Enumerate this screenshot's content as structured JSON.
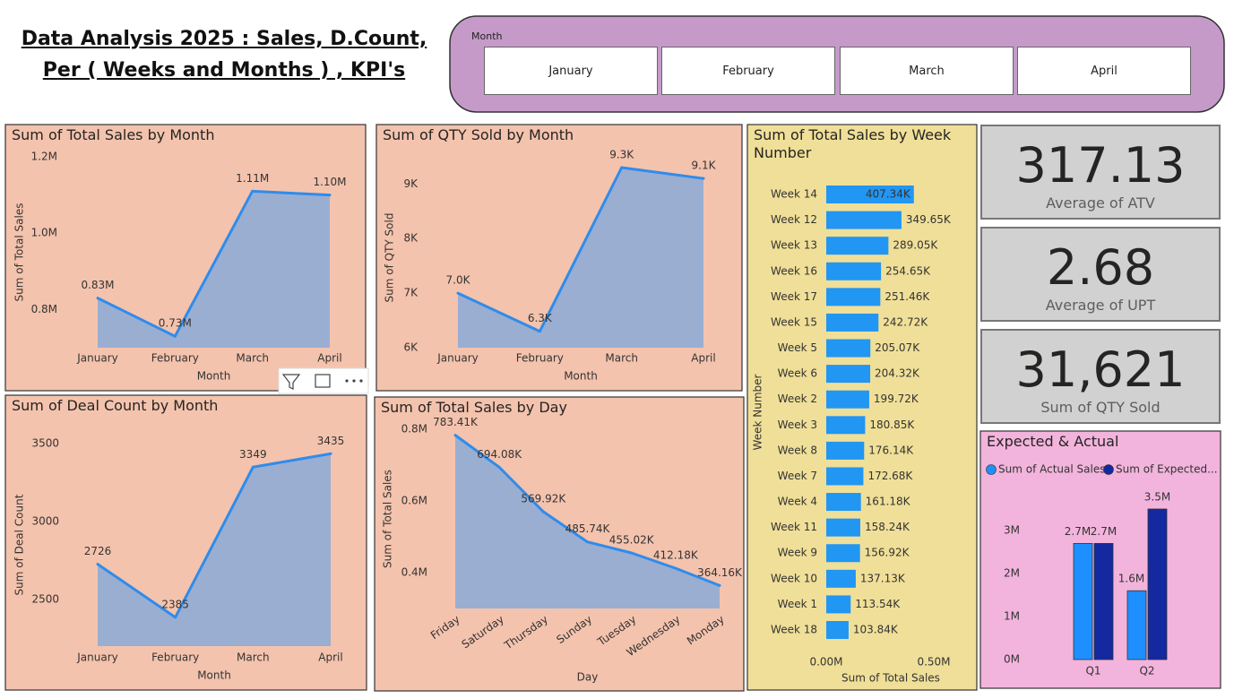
{
  "title": [
    "Data Analysis 2025 : Sales, D.Count,",
    "Per ( Weeks and Months ) , KPI's"
  ],
  "slicer": {
    "title": "Month",
    "items": [
      "January",
      "February",
      "March",
      "April"
    ]
  },
  "cards": [
    {
      "value": "317.13",
      "label": "Average of ATV"
    },
    {
      "value": "2.68",
      "label": "Average of UPT"
    },
    {
      "value": "31,621",
      "label": "Sum of QTY Sold"
    }
  ],
  "chart_data": [
    {
      "type": "area",
      "title": "Sum of Total Sales by Month",
      "x_label": "Month",
      "y_label": "Sum of Total Sales",
      "categories": [
        "January",
        "February",
        "March",
        "April"
      ],
      "values": [
        830000,
        730000,
        1110000,
        1100000
      ],
      "value_labels": [
        "0.83M",
        "0.73M",
        "1.11M",
        "1.10M"
      ],
      "color": "#2f8ceb",
      "ylim": [
        700000,
        1200000
      ],
      "yticks": [
        {
          "value": 800000,
          "label": "0.8M"
        },
        {
          "value": 1000000,
          "label": "1.0M"
        },
        {
          "value": 1200000,
          "label": "1.2M"
        }
      ],
      "grid": false
    },
    {
      "type": "area",
      "title": "Sum of QTY Sold by Month",
      "x_label": "Month",
      "y_label": "Sum of QTY Sold",
      "categories": [
        "January",
        "February",
        "March",
        "April"
      ],
      "values": [
        7000,
        6300,
        9300,
        9100
      ],
      "value_labels": [
        "7.0K",
        "6.3K",
        "9.3K",
        "9.1K"
      ],
      "color": "#2f8ceb",
      "ylim": [
        6000,
        9300
      ],
      "yticks": [
        {
          "value": 6000,
          "label": "6K"
        },
        {
          "value": 7000,
          "label": "7K"
        },
        {
          "value": 8000,
          "label": "8K"
        },
        {
          "value": 9000,
          "label": "9K"
        }
      ],
      "grid": false
    },
    {
      "type": "area",
      "title": "Sum of Deal Count by Month",
      "x_label": "Month",
      "y_label": "Sum of Deal Count",
      "categories": [
        "January",
        "February",
        "March",
        "April"
      ],
      "values": [
        2726,
        2385,
        3349,
        3435
      ],
      "color": "#2f8ceb",
      "ylim": [
        2200,
        3500
      ],
      "yticks": [
        2500,
        3000,
        3500
      ],
      "grid": false
    },
    {
      "type": "area",
      "title": "Sum of Total Sales by Day",
      "x_label": "Day",
      "y_label": "Sum of Total Sales",
      "categories": [
        "Friday",
        "Saturday",
        "Thursday",
        "Sunday",
        "Tuesday",
        "Wednesday",
        "Monday"
      ],
      "values": [
        783410,
        694080,
        569920,
        485740,
        455020,
        412180,
        364160
      ],
      "value_labels": [
        "783.41K",
        "694.08K",
        "569.92K",
        "485.74K",
        "455.02K",
        "412.18K",
        "364.16K"
      ],
      "color": "#2f8ceb",
      "ylim": [
        300000,
        800000
      ],
      "yticks": [
        {
          "value": 400000,
          "label": "0.4M"
        },
        {
          "value": 600000,
          "label": "0.6M"
        },
        {
          "value": 800000,
          "label": "0.8M"
        }
      ],
      "grid": false
    },
    {
      "type": "bar",
      "horizontal": true,
      "title": "Sum of Total Sales by Week Number",
      "x_label": "Sum of Total Sales",
      "y_label": "Week Number",
      "categories": [
        "Week 14",
        "Week 12",
        "Week 13",
        "Week 16",
        "Week 17",
        "Week 15",
        "Week 5",
        "Week 6",
        "Week 2",
        "Week 3",
        "Week 8",
        "Week 7",
        "Week 4",
        "Week 11",
        "Week 9",
        "Week 10",
        "Week 1",
        "Week 18"
      ],
      "values": [
        407340,
        349650,
        289050,
        254650,
        251460,
        242720,
        205070,
        204320,
        199720,
        180850,
        176140,
        172680,
        161180,
        158240,
        156920,
        137130,
        113540,
        103840
      ],
      "value_labels": [
        "407.34K",
        "349.65K",
        "289.05K",
        "254.65K",
        "251.46K",
        "242.72K",
        "205.07K",
        "204.32K",
        "199.72K",
        "180.85K",
        "176.14K",
        "172.68K",
        "161.18K",
        "158.24K",
        "156.92K",
        "137.13K",
        "113.54K",
        "103.84K"
      ],
      "color": "#2196f3",
      "xlim": [
        0,
        500000
      ],
      "xticks": [
        {
          "value": 0,
          "label": "0.00M"
        },
        {
          "value": 500000,
          "label": "0.50M"
        }
      ],
      "grid": false
    },
    {
      "type": "bar",
      "title": "Expected & Actual",
      "legend": "top-left",
      "categories": [
        "Q1",
        "Q2"
      ],
      "series": [
        {
          "name": "Sum of Actual Sales",
          "color": "#1e8fff",
          "values": [
            2700000,
            1600000
          ],
          "value_labels": [
            "2.7M",
            "1.6M"
          ]
        },
        {
          "name": "Sum of Expected...",
          "color": "#1428a0",
          "values": [
            2700000,
            3500000
          ],
          "value_labels": [
            "2.7M",
            "3.5M"
          ]
        }
      ],
      "ylim": [
        0,
        3500000
      ],
      "yticks": [
        {
          "value": 0,
          "label": "0M"
        },
        {
          "value": 1000000,
          "label": "1M"
        },
        {
          "value": 2000000,
          "label": "2M"
        },
        {
          "value": 3000000,
          "label": "3M"
        }
      ],
      "grid": false
    }
  ]
}
